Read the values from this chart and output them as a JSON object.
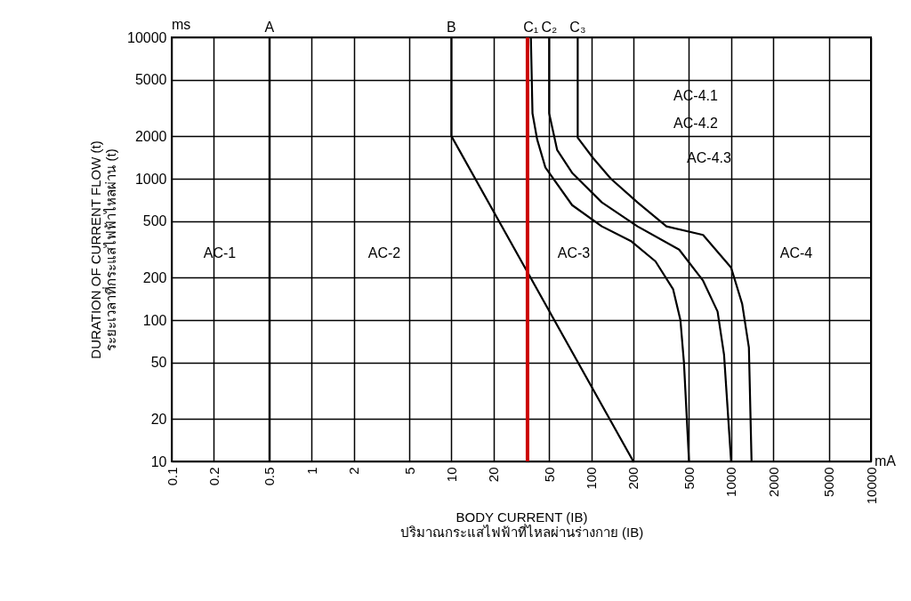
{
  "chart_data": {
    "type": "line",
    "xlabel": "BODY CURRENT (IB)\nปริมาณกระแสไฟฟ้าที่ไหลผ่านร่างกาย (IB)",
    "ylabel": "DURATION OF CURRENT FLOW (t)\nระยะเวลาที่กระแสไฟฟ้าไหลผ่าน (t)",
    "log": "xy",
    "xlim": [
      0.1,
      10000
    ],
    "xticks": [
      0.1,
      0.2,
      0.5,
      1,
      2,
      5,
      10,
      20,
      50,
      100,
      200,
      500,
      1000,
      2000,
      5000,
      10000
    ],
    "ylim": [
      10,
      10000
    ],
    "yticks": [
      10,
      20,
      50,
      100,
      200,
      500,
      1000,
      2000,
      5000,
      10000
    ],
    "grid": true,
    "marker": "none",
    "line_style": "solid",
    "series": [
      {
        "color": "#000000",
        "x": [
          0.5,
          0.5
        ],
        "values": [
          10,
          10000
        ]
      },
      {
        "color": "#000000",
        "x": [
          10,
          10,
          200
        ],
        "values": [
          10000,
          2000,
          10
        ]
      },
      {
        "color": "#000000",
        "x": [
          37,
          38,
          41,
          47,
          73,
          119,
          194,
          288,
          385,
          434,
          460,
          500
        ],
        "values": [
          10000,
          2900,
          1900,
          1200,
          650,
          460,
          360,
          260,
          165,
          100,
          50,
          10
        ]
      },
      {
        "color": "#000000",
        "x": [
          50,
          50,
          57,
          73,
          119,
          214,
          425,
          630,
          800,
          890,
          1000
        ],
        "values": [
          10000,
          2900,
          1600,
          1100,
          680,
          460,
          315,
          190,
          115,
          57,
          10
        ]
      },
      {
        "color": "#000000",
        "x": [
          80,
          80,
          103,
          138,
          214,
          345,
          630,
          1000,
          1200,
          1340,
          1400
        ],
        "values": [
          10000,
          1950,
          1400,
          1000,
          680,
          460,
          400,
          235,
          130,
          64,
          10
        ]
      }
    ],
    "ref_lines": [
      {
        "axis": "x",
        "value": 35,
        "color": "#cc0000"
      }
    ],
    "annotations": [
      "ms",
      "mA",
      {
        "text": "A",
        "x": 0.5,
        "y": 10000
      },
      {
        "text": "B",
        "x": 10,
        "y": 10000
      },
      {
        "text": "C₁",
        "x": 37,
        "y": 10000
      },
      {
        "text": "C₂",
        "x": 50,
        "y": 10000
      },
      {
        "text": "C₃",
        "x": 80,
        "y": 10000
      },
      "AC-1",
      "AC-2",
      "AC-3",
      "AC-4",
      "AC-4.1",
      "AC-4.2",
      "AC-4.3"
    ]
  }
}
